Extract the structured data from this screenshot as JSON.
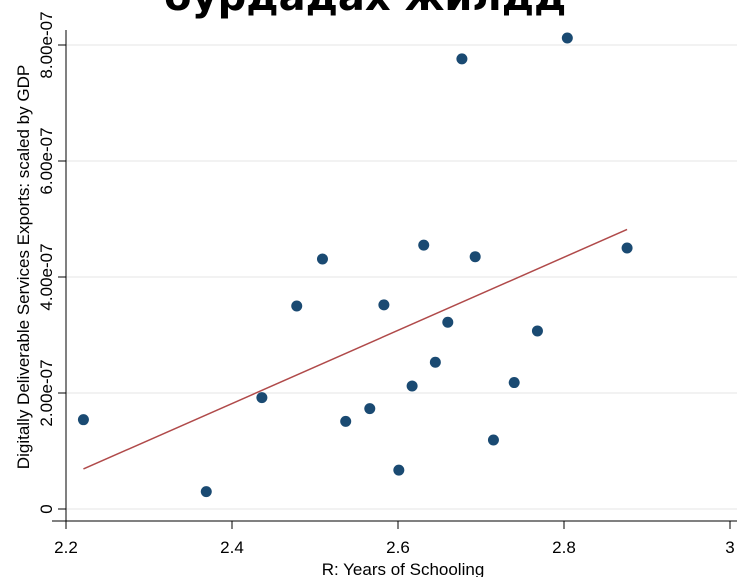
{
  "chart_data": {
    "type": "scatter",
    "title": "бурдадах жилдд",
    "xlabel": "R: Years of Schooling",
    "ylabel": "Digitally Deliverable Services Exports: scaled by GDP",
    "xlim": [
      2.2,
      3.0
    ],
    "ylim": [
      0,
      8e-07
    ],
    "xticks": [
      2.2,
      2.4,
      2.6,
      2.8,
      3.0
    ],
    "xtick_labels": [
      "2.2",
      "2.4",
      "2.6",
      "2.8",
      "3"
    ],
    "yticks": [
      0,
      2e-07,
      4e-07,
      6e-07,
      8e-07
    ],
    "ytick_labels": [
      "0",
      "2.00e-07",
      "4.00e-07",
      "6.00e-07",
      "8.00e-07"
    ],
    "grid": "horizontal",
    "legend": "none",
    "marker_color": "#1a4a72",
    "fit_line_color": "#b04a4a",
    "points": [
      {
        "x": 2.221,
        "y": 1.54e-07
      },
      {
        "x": 2.369,
        "y": 3e-08
      },
      {
        "x": 2.436,
        "y": 1.92e-07
      },
      {
        "x": 2.478,
        "y": 3.5e-07
      },
      {
        "x": 2.509,
        "y": 4.31e-07
      },
      {
        "x": 2.537,
        "y": 1.51e-07
      },
      {
        "x": 2.566,
        "y": 1.73e-07
      },
      {
        "x": 2.583,
        "y": 3.52e-07
      },
      {
        "x": 2.601,
        "y": 6.7e-08
      },
      {
        "x": 2.617,
        "y": 2.12e-07
      },
      {
        "x": 2.631,
        "y": 4.55e-07
      },
      {
        "x": 2.645,
        "y": 2.53e-07
      },
      {
        "x": 2.66,
        "y": 3.22e-07
      },
      {
        "x": 2.677,
        "y": 7.76e-07
      },
      {
        "x": 2.693,
        "y": 4.35e-07
      },
      {
        "x": 2.715,
        "y": 1.19e-07
      },
      {
        "x": 2.74,
        "y": 2.18e-07
      },
      {
        "x": 2.768,
        "y": 3.07e-07
      },
      {
        "x": 2.804,
        "y": 8.12e-07
      },
      {
        "x": 2.876,
        "y": 4.5e-07
      }
    ],
    "fit_line": {
      "x": [
        2.221,
        2.876
      ],
      "y": [
        6.9e-08,
        4.82e-07
      ]
    }
  }
}
